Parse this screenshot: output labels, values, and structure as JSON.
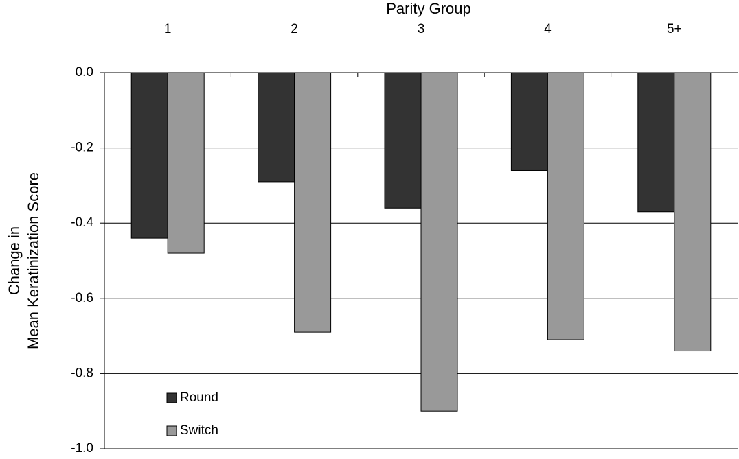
{
  "chart_data": {
    "type": "bar",
    "title": "Parity Group",
    "ylabel": [
      "Change in",
      "Mean Keratinization Score"
    ],
    "categories": [
      "1",
      "2",
      "3",
      "4",
      "5+"
    ],
    "series": [
      {
        "name": "Round",
        "color": "#333333",
        "values": [
          -0.44,
          -0.29,
          -0.36,
          -0.26,
          -0.37
        ]
      },
      {
        "name": "Switch",
        "color": "#999999",
        "values": [
          -0.48,
          -0.69,
          -0.9,
          -0.71,
          -0.74
        ]
      }
    ],
    "ylim": [
      -1,
      0
    ],
    "yticks": [
      {
        "value": 0,
        "label": "0.0"
      },
      -0.2,
      -0.4,
      -0.6,
      -0.8,
      {
        "value": -1,
        "label": "-1.0"
      }
    ],
    "grid": true,
    "legend": "lower left"
  }
}
